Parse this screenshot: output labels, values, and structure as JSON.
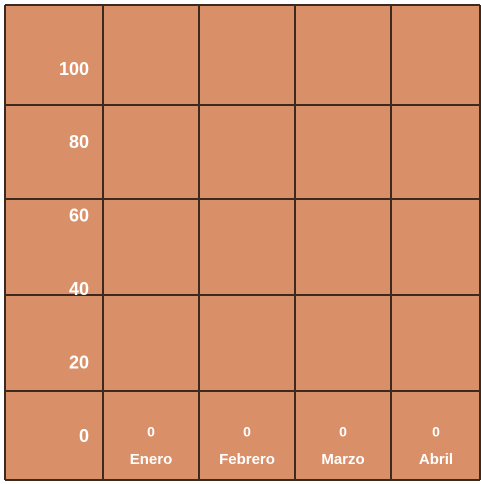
{
  "chart_data": {
    "type": "bar",
    "categories": [
      "Enero",
      "Febrero",
      "Marzo",
      "Abril"
    ],
    "values": [
      0,
      0,
      0,
      0
    ],
    "color": "#d98f68",
    "ylim": [
      0,
      100
    ],
    "yticks": [
      0,
      20,
      40,
      60,
      80,
      100
    ]
  }
}
